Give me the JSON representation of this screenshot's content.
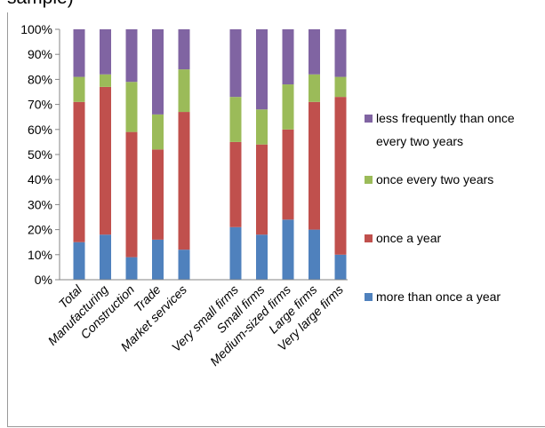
{
  "title_fragment": "sample)",
  "chart_data": {
    "type": "bar",
    "stacked": true,
    "percent_stacked": true,
    "categories": [
      "Total",
      "Manufacturing",
      "Construction",
      "Trade",
      "Market services",
      "Very small firms",
      "Small firms",
      "Medium-sized firms",
      "Large firms",
      "Very large firms"
    ],
    "group_gap_after_index": 4,
    "series": [
      {
        "name": "more than once a year",
        "color": "#4f81bd",
        "values": [
          15,
          18,
          9,
          16,
          12,
          21,
          18,
          24,
          20,
          10
        ]
      },
      {
        "name": "once a year",
        "color": "#c0504d",
        "values": [
          56,
          59,
          50,
          36,
          55,
          34,
          36,
          36,
          51,
          63
        ]
      },
      {
        "name": "once every two years",
        "color": "#9bbb59",
        "values": [
          10,
          5,
          20,
          14,
          17,
          18,
          14,
          18,
          11,
          8
        ]
      },
      {
        "name": "less frequently than once every two years",
        "color": "#8064a2",
        "values": [
          19,
          18,
          21,
          34,
          16,
          27,
          32,
          22,
          18,
          19
        ]
      }
    ],
    "y_ticks": [
      "0%",
      "10%",
      "20%",
      "30%",
      "40%",
      "50%",
      "60%",
      "70%",
      "80%",
      "90%",
      "100%"
    ],
    "ylim": [
      0,
      100
    ],
    "legend": {
      "placement": "right",
      "order": [
        "less frequently than once every two years",
        "once every two years",
        "once a year",
        "more than once a year"
      ],
      "lines": [
        [
          "less frequently than once",
          "every two years"
        ],
        [
          "once every two years"
        ],
        [
          "once a year"
        ],
        [
          "more than once a year"
        ]
      ]
    },
    "grid": false
  }
}
